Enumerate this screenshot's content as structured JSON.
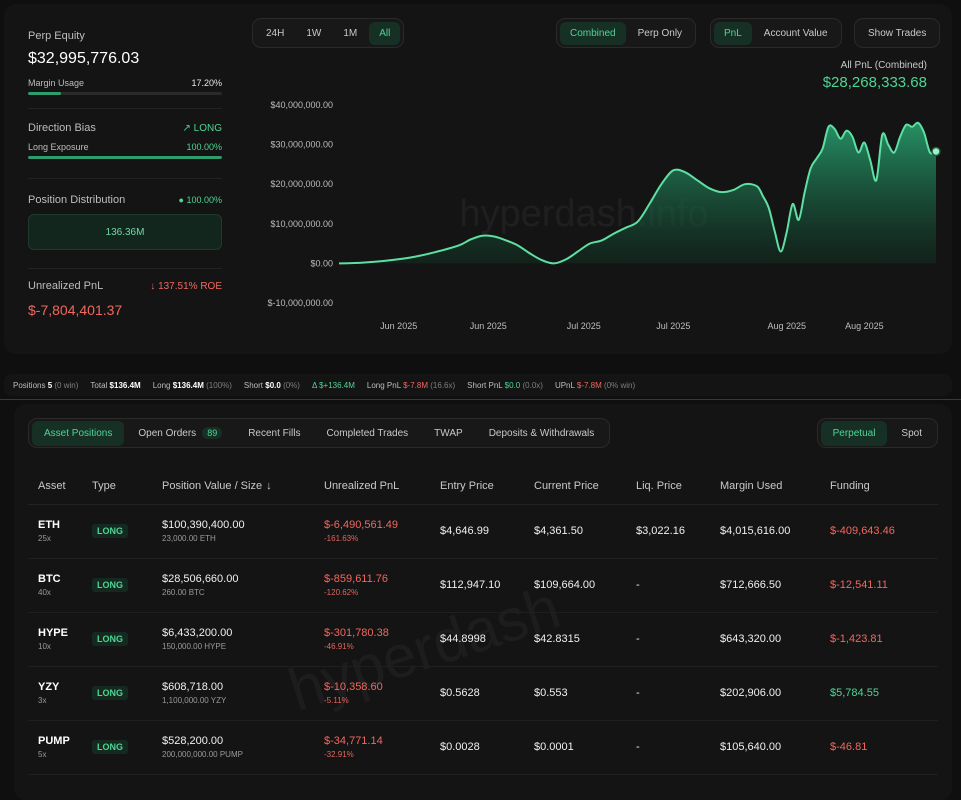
{
  "left": {
    "perp_equity_label": "Perp Equity",
    "perp_equity_value": "$32,995,776.03",
    "margin_usage_label": "Margin Usage",
    "margin_usage_value": "17.20%",
    "margin_usage_fraction": 0.172,
    "direction_bias_label": "Direction Bias",
    "direction_bias_value": "LONG",
    "long_exposure_label": "Long Exposure",
    "long_exposure_value": "100.00%",
    "long_exposure_fraction": 1.0,
    "position_distribution_label": "Position Distribution",
    "position_distribution_pct": "100.00%",
    "position_distribution_value": "136.36M",
    "unrealized_pnl_label": "Unrealized PnL",
    "unrealized_roe": "137.51% ROE",
    "unrealized_pnl_value": "$-7,804,401.37"
  },
  "chart_controls": {
    "range_buttons": [
      "24H",
      "1W",
      "1M",
      "All"
    ],
    "range_active": 3,
    "mode_buttons": [
      "Combined",
      "Perp Only"
    ],
    "mode_active": 0,
    "metric_buttons": [
      "PnL",
      "Account Value"
    ],
    "metric_active": 0,
    "show_trades": "Show Trades"
  },
  "all_pnl_label": "All PnL (Combined)",
  "all_pnl_value": "$28,268,333.68",
  "watermark": "hyperdash.info",
  "chart_data": {
    "type": "area",
    "title": "",
    "xlabel": "",
    "ylabel": "",
    "ylim": [
      -10000000,
      40000000
    ],
    "y_ticks": [
      40000000,
      30000000,
      20000000,
      10000000,
      0,
      -10000000
    ],
    "y_tick_labels": [
      "$40,000,000.00",
      "$30,000,000.00",
      "$20,000,000.00",
      "$10,000,000.00",
      "$0.00",
      "$-10,000,000.00"
    ],
    "x_tick_labels": [
      "Jun 2025",
      "Jun 2025",
      "Jul 2025",
      "Jul 2025",
      "Aug 2025",
      "Aug 2025"
    ],
    "x": [
      0,
      0.04,
      0.08,
      0.12,
      0.16,
      0.2,
      0.22,
      0.24,
      0.26,
      0.28,
      0.3,
      0.32,
      0.34,
      0.36,
      0.38,
      0.4,
      0.42,
      0.44,
      0.46,
      0.48,
      0.5,
      0.52,
      0.54,
      0.56,
      0.58,
      0.6,
      0.62,
      0.64,
      0.66,
      0.68,
      0.7,
      0.71,
      0.72,
      0.73,
      0.74,
      0.75,
      0.76,
      0.77,
      0.78,
      0.79,
      0.8,
      0.81,
      0.82,
      0.83,
      0.84,
      0.85,
      0.86,
      0.87,
      0.88,
      0.89,
      0.9,
      0.91,
      0.92,
      0.93,
      0.94,
      0.95,
      0.96,
      0.97,
      0.98,
      0.99,
      1.0
    ],
    "values": [
      0,
      200000,
      700000,
      1500000,
      2800000,
      4500000,
      6000000,
      7000000,
      6800000,
      5800000,
      4500000,
      2500000,
      800000,
      0,
      1000000,
      3000000,
      5000000,
      5800000,
      7500000,
      9000000,
      10500000,
      15000000,
      20000000,
      23500000,
      23000000,
      21000000,
      19000000,
      18000000,
      18500000,
      20000000,
      19500000,
      17000000,
      14000000,
      8000000,
      3000000,
      8000000,
      15000000,
      11000000,
      18000000,
      24000000,
      26500000,
      29000000,
      34500000,
      34000000,
      31500000,
      33500000,
      32000000,
      28000000,
      30500000,
      26000000,
      21000000,
      32500000,
      30000000,
      28000000,
      32000000,
      35000000,
      34500000,
      35500000,
      33000000,
      28000000,
      28268333
    ],
    "series": [
      {
        "values_ref": "values"
      }
    ]
  },
  "strip": {
    "positions_label": "Positions",
    "positions_value": "5",
    "positions_sub": "(0 win)",
    "total_label": "Total",
    "total_value": "$136.4M",
    "long_label": "Long",
    "long_value": "$136.4M",
    "long_sub": "(100%)",
    "short_label": "Short",
    "short_value": "$0.0",
    "short_sub": "(0%)",
    "delta_label": "Δ",
    "delta_value": "$+136.4M",
    "long_pnl_label": "Long PnL",
    "long_pnl_value": "$-7.8M",
    "long_pnl_sub": "(16.6x)",
    "short_pnl_label": "Short PnL",
    "short_pnl_value": "$0.0",
    "short_pnl_sub": "(0.0x)",
    "upnl_label": "UPnL",
    "upnl_value": "$-7.8M",
    "upnl_sub": "(0% win)"
  },
  "tabs": {
    "items": [
      {
        "label": "Asset Positions",
        "count": ""
      },
      {
        "label": "Open Orders",
        "count": "89"
      },
      {
        "label": "Recent Fills",
        "count": ""
      },
      {
        "label": "Completed Trades",
        "count": ""
      },
      {
        "label": "TWAP",
        "count": ""
      },
      {
        "label": "Deposits & Withdrawals",
        "count": ""
      }
    ],
    "active": 0,
    "type_items": [
      "Perpetual",
      "Spot"
    ],
    "type_active": 0
  },
  "table": {
    "headers": [
      "Asset",
      "Type",
      "Position Value / Size",
      "Unrealized PnL",
      "Entry Price",
      "Current Price",
      "Liq. Price",
      "Margin Used",
      "Funding"
    ],
    "rows": [
      {
        "asset": "ETH",
        "lev": "25x",
        "type": "LONG",
        "value": "$100,390,400.00",
        "size": "23,000.00 ETH",
        "upnl": "$-6,490,561.49",
        "upnl_pct": "-161.63%",
        "entry": "$4,646.99",
        "current": "$4,361.50",
        "liq": "$3,022.16",
        "margin": "$4,015,616.00",
        "funding": "$-409,643.46",
        "funding_pos": false
      },
      {
        "asset": "BTC",
        "lev": "40x",
        "type": "LONG",
        "value": "$28,506,660.00",
        "size": "260.00 BTC",
        "upnl": "$-859,611.76",
        "upnl_pct": "-120.62%",
        "entry": "$112,947.10",
        "current": "$109,664.00",
        "liq": "-",
        "margin": "$712,666.50",
        "funding": "$-12,541.11",
        "funding_pos": false
      },
      {
        "asset": "HYPE",
        "lev": "10x",
        "type": "LONG",
        "value": "$6,433,200.00",
        "size": "150,000.00 HYPE",
        "upnl": "$-301,780.38",
        "upnl_pct": "-46.91%",
        "entry": "$44.8998",
        "current": "$42.8315",
        "liq": "-",
        "margin": "$643,320.00",
        "funding": "$-1,423.81",
        "funding_pos": false
      },
      {
        "asset": "YZY",
        "lev": "3x",
        "type": "LONG",
        "value": "$608,718.00",
        "size": "1,100,000.00 YZY",
        "upnl": "$-10,358.60",
        "upnl_pct": "-5.11%",
        "entry": "$0.5628",
        "current": "$0.553",
        "liq": "-",
        "margin": "$202,906.00",
        "funding": "$5,784.55",
        "funding_pos": true
      },
      {
        "asset": "PUMP",
        "lev": "5x",
        "type": "LONG",
        "value": "$528,200.00",
        "size": "200,000,000.00 PUMP",
        "upnl": "$-34,771.14",
        "upnl_pct": "-32.91%",
        "entry": "$0.0028",
        "current": "$0.0001",
        "liq": "-",
        "margin": "$105,640.00",
        "funding": "$-46.81",
        "funding_pos": false
      }
    ]
  },
  "table_watermark": "hyperdash",
  "colors": {
    "accent": "#4ed594",
    "negative": "#f2675f",
    "background": "#0f0f0f",
    "panel": "#141414"
  }
}
